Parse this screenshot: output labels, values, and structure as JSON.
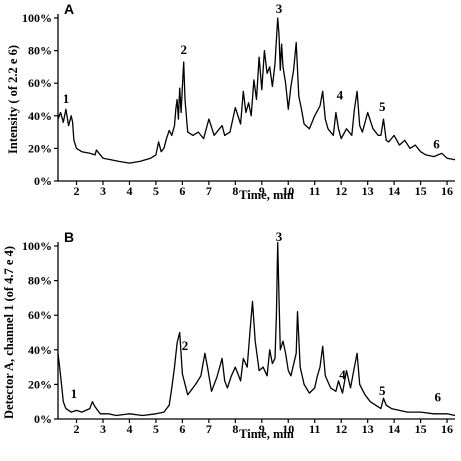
{
  "chart_data": [
    {
      "type": "line",
      "panel_label": "A",
      "xlabel": "Time, min",
      "ylabel": "Intensity ( of 2.2 e 6)",
      "xlim": [
        1.3,
        16.3
      ],
      "ylim": [
        0,
        100
      ],
      "x_ticks": [
        "2",
        "3",
        "4",
        "5",
        "6",
        "7",
        "8",
        "9",
        "10",
        "11",
        "12",
        "13",
        "14",
        "15",
        "16"
      ],
      "y_ticks": [
        "0%",
        "20%",
        "40%",
        "60%",
        "80%",
        "100%"
      ],
      "series": [
        {
          "x": [
            1.3,
            1.4,
            1.5,
            1.6,
            1.7,
            1.8,
            1.85,
            1.9,
            2.0,
            2.2,
            2.5,
            2.7,
            2.75,
            2.8,
            3.0,
            3.3,
            3.6,
            4.0,
            4.4,
            4.8,
            5.0,
            5.1,
            5.2,
            5.3,
            5.4,
            5.5,
            5.6,
            5.7,
            5.75,
            5.8,
            5.85,
            5.9,
            5.95,
            6.0,
            6.05,
            6.1,
            6.2,
            6.4,
            6.6,
            6.8,
            7.0,
            7.2,
            7.4,
            7.5,
            7.6,
            7.8,
            8.0,
            8.2,
            8.3,
            8.4,
            8.5,
            8.6,
            8.7,
            8.8,
            8.9,
            9.0,
            9.1,
            9.2,
            9.3,
            9.4,
            9.5,
            9.6,
            9.65,
            9.7,
            9.75,
            9.8,
            9.9,
            10.0,
            10.1,
            10.2,
            10.3,
            10.4,
            10.5,
            10.6,
            10.8,
            11.0,
            11.2,
            11.3,
            11.4,
            11.5,
            11.7,
            11.8,
            11.9,
            12.0,
            12.2,
            12.4,
            12.5,
            12.6,
            12.7,
            12.8,
            13.0,
            13.2,
            13.4,
            13.5,
            13.6,
            13.7,
            13.8,
            14.0,
            14.2,
            14.4,
            14.6,
            14.8,
            15.0,
            15.2,
            15.5,
            15.8,
            16.0,
            16.3
          ],
          "y": [
            38,
            42,
            36,
            44,
            34,
            40,
            36,
            25,
            20,
            18,
            17,
            16,
            19,
            18,
            14,
            13,
            12,
            11,
            12,
            14,
            16,
            24,
            18,
            20,
            26,
            31,
            28,
            34,
            44,
            50,
            38,
            57,
            42,
            58,
            73,
            50,
            30,
            28,
            30,
            26,
            38,
            28,
            32,
            34,
            28,
            30,
            45,
            35,
            55,
            42,
            48,
            40,
            62,
            50,
            76,
            56,
            80,
            66,
            70,
            58,
            72,
            100,
            90,
            68,
            84,
            70,
            60,
            44,
            58,
            68,
            85,
            52,
            44,
            35,
            32,
            40,
            46,
            55,
            38,
            32,
            28,
            42,
            32,
            26,
            32,
            28,
            44,
            55,
            34,
            30,
            42,
            32,
            28,
            28,
            38,
            25,
            24,
            28,
            22,
            25,
            20,
            22,
            18,
            16,
            15,
            17,
            14,
            13
          ]
        }
      ],
      "annotations": [
        {
          "text": "1",
          "x": 1.6,
          "y": 48
        },
        {
          "text": "2",
          "x": 6.05,
          "y": 78
        },
        {
          "text": "3",
          "x": 9.65,
          "y": 103
        },
        {
          "text": "4",
          "x": 11.95,
          "y": 50
        },
        {
          "text": "5",
          "x": 13.55,
          "y": 43
        },
        {
          "text": "6",
          "x": 15.6,
          "y": 20
        }
      ]
    },
    {
      "type": "line",
      "panel_label": "B",
      "xlabel": "Time, min",
      "ylabel": "Detector A, channel 1 (of 4.7 e 4)",
      "xlim": [
        1.3,
        16.3
      ],
      "ylim": [
        0,
        100
      ],
      "x_ticks": [
        "2",
        "3",
        "4",
        "5",
        "6",
        "7",
        "8",
        "9",
        "10",
        "11",
        "12",
        "13",
        "14",
        "15",
        "16"
      ],
      "y_ticks": [
        "0%",
        "20%",
        "40%",
        "60%",
        "80%",
        "100%"
      ],
      "series": [
        {
          "x": [
            1.3,
            1.4,
            1.5,
            1.6,
            1.8,
            2.0,
            2.2,
            2.5,
            2.6,
            2.7,
            2.9,
            3.2,
            3.5,
            4.0,
            4.5,
            5.0,
            5.3,
            5.5,
            5.6,
            5.7,
            5.8,
            5.9,
            6.0,
            6.2,
            6.5,
            6.7,
            6.85,
            6.95,
            7.1,
            7.3,
            7.5,
            7.6,
            7.7,
            7.85,
            8.0,
            8.2,
            8.3,
            8.45,
            8.55,
            8.65,
            8.75,
            8.9,
            9.05,
            9.2,
            9.3,
            9.4,
            9.5,
            9.55,
            9.6,
            9.65,
            9.7,
            9.8,
            9.9,
            10.0,
            10.1,
            10.3,
            10.35,
            10.45,
            10.6,
            10.8,
            11.0,
            11.1,
            11.2,
            11.3,
            11.4,
            11.6,
            11.8,
            11.9,
            12.05,
            12.2,
            12.35,
            12.5,
            12.6,
            12.7,
            12.9,
            13.1,
            13.3,
            13.5,
            13.6,
            13.7,
            13.9,
            14.2,
            14.5,
            15.0,
            15.5,
            16.0,
            16.3
          ],
          "y": [
            38,
            25,
            10,
            6,
            4,
            5,
            4,
            6,
            10,
            7,
            3,
            3,
            2,
            3,
            2,
            3,
            4,
            8,
            18,
            30,
            44,
            50,
            26,
            14,
            20,
            25,
            38,
            30,
            16,
            24,
            35,
            22,
            18,
            25,
            30,
            22,
            35,
            30,
            50,
            68,
            45,
            28,
            30,
            25,
            40,
            32,
            35,
            60,
            102,
            70,
            40,
            45,
            38,
            28,
            25,
            38,
            62,
            30,
            20,
            15,
            18,
            25,
            30,
            42,
            25,
            18,
            16,
            22,
            15,
            28,
            18,
            30,
            38,
            20,
            14,
            10,
            8,
            6,
            12,
            8,
            6,
            5,
            4,
            4,
            3,
            3,
            2
          ]
        }
      ],
      "annotations": [
        {
          "text": "1",
          "x": 1.9,
          "y": 12
        },
        {
          "text": "2",
          "x": 6.1,
          "y": 40
        },
        {
          "text": "3",
          "x": 9.65,
          "y": 103
        },
        {
          "text": "4",
          "x": 12.05,
          "y": 23
        },
        {
          "text": "5",
          "x": 13.55,
          "y": 14
        },
        {
          "text": "6",
          "x": 15.65,
          "y": 10
        }
      ]
    }
  ]
}
